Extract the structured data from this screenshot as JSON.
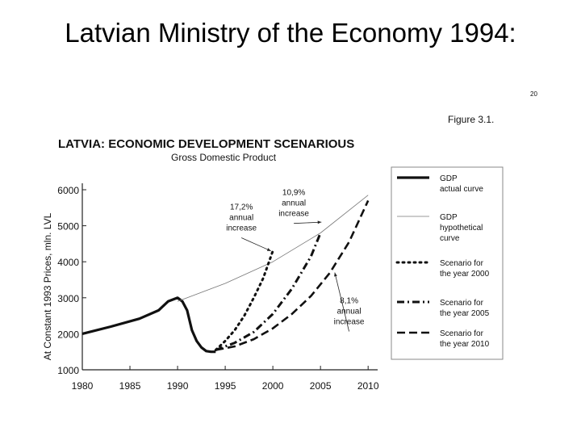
{
  "slide": {
    "title": "Latvian Ministry of the Economy 1994:"
  },
  "page_number": "20",
  "figure_label": "Figure 3.1.",
  "chart_data": {
    "type": "line",
    "title": "LATVIA: ECONOMIC DEVELOPMENT SCENARIOUS",
    "subtitle": "Gross Domestic Product",
    "ylabel": "At Constant 1993 Prices, mln. LVL",
    "xlabel": "",
    "xlim": [
      1980,
      2011
    ],
    "ylim": [
      1000,
      6000
    ],
    "x_ticks": [
      1980,
      1985,
      1990,
      1995,
      2000,
      2005,
      2010
    ],
    "y_ticks": [
      1000,
      2000,
      3000,
      4000,
      5000,
      6000
    ],
    "grid": false,
    "legend_position": "right",
    "series": [
      {
        "name": "GDP actual curve",
        "style": "solid-thick",
        "points": [
          [
            1980,
            2000
          ],
          [
            1983,
            2200
          ],
          [
            1986,
            2420
          ],
          [
            1988,
            2650
          ],
          [
            1989,
            2900
          ],
          [
            1990,
            3000
          ],
          [
            1990.5,
            2900
          ],
          [
            1991,
            2650
          ],
          [
            1991.5,
            2100
          ],
          [
            1992,
            1800
          ],
          [
            1992.5,
            1620
          ],
          [
            1993,
            1520
          ],
          [
            1993.5,
            1500
          ],
          [
            1994,
            1500
          ]
        ]
      },
      {
        "name": "GDP hypothetical curve",
        "style": "thin",
        "points": [
          [
            1990,
            2900
          ],
          [
            1995,
            3400
          ],
          [
            2000,
            4000
          ],
          [
            2005,
            4800
          ],
          [
            2010,
            5850
          ]
        ]
      },
      {
        "name": "Scenario for the year 2000",
        "style": "dotted",
        "points": [
          [
            1994,
            1550
          ],
          [
            1995,
            1800
          ],
          [
            1996,
            2100
          ],
          [
            1997,
            2500
          ],
          [
            1998,
            3000
          ],
          [
            1999,
            3550
          ],
          [
            2000,
            4300
          ]
        ]
      },
      {
        "name": "Scenario for the year 2005",
        "style": "dash-dot",
        "points": [
          [
            1994,
            1550
          ],
          [
            1996,
            1750
          ],
          [
            1998,
            2050
          ],
          [
            2000,
            2550
          ],
          [
            2002,
            3250
          ],
          [
            2004,
            4150
          ],
          [
            2005,
            4800
          ]
        ]
      },
      {
        "name": "Scenario for the year 2010",
        "style": "dashed",
        "points": [
          [
            1994,
            1550
          ],
          [
            1996,
            1650
          ],
          [
            1998,
            1850
          ],
          [
            2000,
            2150
          ],
          [
            2002,
            2550
          ],
          [
            2004,
            3050
          ],
          [
            2006,
            3700
          ],
          [
            2008,
            4550
          ],
          [
            2010,
            5700
          ]
        ]
      }
    ],
    "annotations": [
      {
        "lines": [
          "17,2%",
          "annual",
          "increase"
        ],
        "x": 1996.7,
        "y": 5450,
        "arrow_to": [
          1999.8,
          4300
        ]
      },
      {
        "lines": [
          "10,9%",
          "annual",
          "increase"
        ],
        "x": 2002.2,
        "y": 5850,
        "arrow_to": [
          2005.1,
          5100
        ]
      },
      {
        "lines": [
          "8,1%",
          "annual",
          "increase"
        ],
        "x": 2008.0,
        "y": 2850,
        "arrow_to": [
          2006.5,
          3700
        ]
      }
    ]
  }
}
